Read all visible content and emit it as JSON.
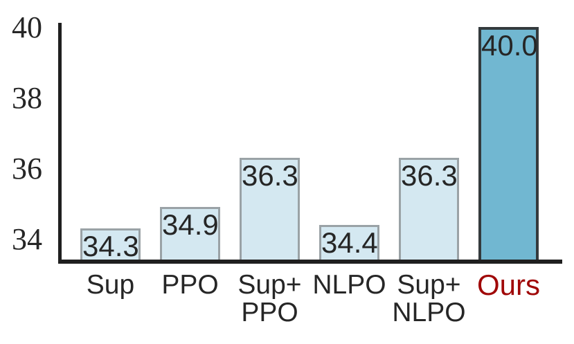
{
  "chart_data": {
    "type": "bar",
    "title": "",
    "xlabel": "",
    "ylabel": "",
    "categories": [
      "Sup",
      "PPO",
      "Sup+PPO",
      "NLPO",
      "Sup+NLPO",
      "Ours"
    ],
    "category_lines": [
      [
        "Sup"
      ],
      [
        "PPO"
      ],
      [
        "Sup+",
        "PPO"
      ],
      [
        "NLPO"
      ],
      [
        "Sup+",
        "NLPO"
      ],
      [
        "Ours"
      ]
    ],
    "values": [
      34.3,
      34.9,
      36.3,
      34.4,
      36.3,
      40.0
    ],
    "value_labels": [
      "34.3",
      "34.9",
      "36.3",
      "34.4",
      "36.3",
      "40.0"
    ],
    "yticks": [
      34,
      36,
      38,
      40
    ],
    "ylim": [
      33.4,
      40.15
    ],
    "grid": false,
    "legend": false,
    "highlight_index": 5,
    "colors": {
      "bar_fill": "#d4e8f1",
      "bar_border": "#9aa2a6",
      "highlight_fill": "#71b7d1",
      "highlight_border": "#343a3d",
      "highlight_label": "#a00808",
      "axis": "#1f1f1f",
      "text": "#262626"
    }
  }
}
